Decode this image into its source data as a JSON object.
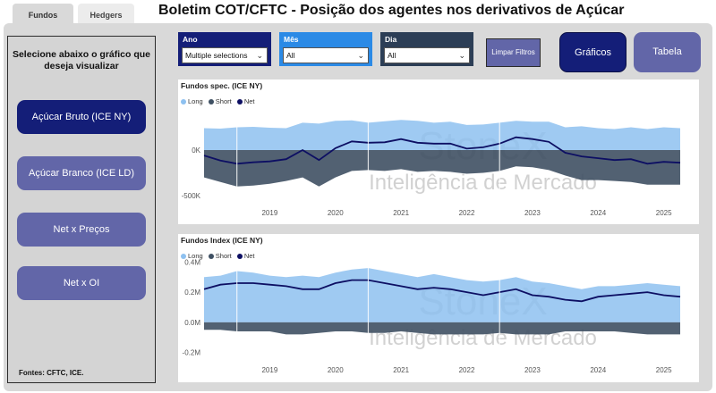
{
  "tabs": [
    {
      "label": "Fundos",
      "active": true
    },
    {
      "label": "Hedgers",
      "active": false
    }
  ],
  "title": "Boletim COT/CFTC - Posição dos agentes nos derivativos de Açúcar",
  "left_panel": {
    "heading": "Selecione abaixo o gráfico que deseja visualizar",
    "buttons": [
      "Açúcar Bruto (ICE NY)",
      "Açúcar Branco (ICE LD)",
      "Net x Preços",
      "Net x OI"
    ],
    "active_button": "Açúcar Bruto (ICE NY)",
    "source": "Fontes: CFTC, ICE."
  },
  "filters": [
    {
      "label": "Ano",
      "value": "Multiple selections",
      "color": "#141e78"
    },
    {
      "label": "Mês",
      "value": "All",
      "color": "#2b8ae6"
    },
    {
      "label": "Dia",
      "value": "All",
      "color": "#2c3e56"
    }
  ],
  "clear_button": "Limpar Filtros",
  "view_buttons": {
    "graficos": "Gráficos",
    "tabela": "Tabela",
    "active": "Gráficos"
  },
  "watermark": {
    "brand": "StoneX",
    "subtitle": "Inteligência de Mercado"
  },
  "colors": {
    "long": "#8ec1f0",
    "short": "#3f5063",
    "net": "#0d0f63"
  },
  "chart_data": [
    {
      "type": "area",
      "title": "Fundos spec.  (ICE NY)",
      "legend": [
        "Long",
        "Short",
        "Net"
      ],
      "x_ticks": [
        "2019",
        "2020",
        "2021",
        "2022",
        "2023",
        "2024",
        "2025"
      ],
      "y_ticks": [
        "0K",
        "-500K"
      ],
      "ylim": [
        -520000,
        480000
      ],
      "x": [
        2018.5,
        2018.75,
        2019.0,
        2019.25,
        2019.5,
        2019.75,
        2020.0,
        2020.25,
        2020.5,
        2020.75,
        2021.0,
        2021.25,
        2021.5,
        2021.75,
        2022.0,
        2022.25,
        2022.5,
        2022.75,
        2023.0,
        2023.25,
        2023.5,
        2023.75,
        2024.0,
        2024.25,
        2024.5,
        2024.75,
        2025.0,
        2025.25,
        2025.5,
        2025.75
      ],
      "series": [
        {
          "name": "Long",
          "values": [
            240000,
            235000,
            250000,
            255000,
            245000,
            240000,
            300000,
            290000,
            320000,
            325000,
            300000,
            315000,
            330000,
            320000,
            300000,
            310000,
            275000,
            280000,
            300000,
            320000,
            310000,
            310000,
            250000,
            260000,
            240000,
            230000,
            250000,
            230000,
            250000,
            240000
          ]
        },
        {
          "name": "Short",
          "values": [
            -300000,
            -350000,
            -400000,
            -390000,
            -370000,
            -340000,
            -300000,
            -400000,
            -300000,
            -230000,
            -220000,
            -230000,
            -210000,
            -240000,
            -230000,
            -240000,
            -260000,
            -250000,
            -230000,
            -180000,
            -190000,
            -220000,
            -280000,
            -330000,
            -330000,
            -340000,
            -350000,
            -380000,
            -380000,
            -380000
          ]
        },
        {
          "name": "Net",
          "values": [
            -60000,
            -115000,
            -150000,
            -135000,
            -125000,
            -100000,
            0,
            -110000,
            20000,
            95000,
            80000,
            85000,
            120000,
            80000,
            70000,
            70000,
            15000,
            30000,
            70000,
            140000,
            120000,
            90000,
            -30000,
            -70000,
            -90000,
            -110000,
            -100000,
            -150000,
            -130000,
            -140000
          ]
        }
      ]
    },
    {
      "type": "area",
      "title": "Fundos Index  (ICE NY)",
      "legend": [
        "Long",
        "Short",
        "Net"
      ],
      "x_ticks": [
        "2019",
        "2020",
        "2021",
        "2022",
        "2023",
        "2024",
        "2025"
      ],
      "y_ticks": [
        "0.4M",
        "0.2M",
        "0.0M",
        "-0.2M"
      ],
      "ylim": [
        -0.22,
        0.42
      ],
      "x": [
        2018.5,
        2018.75,
        2019.0,
        2019.25,
        2019.5,
        2019.75,
        2020.0,
        2020.25,
        2020.5,
        2020.75,
        2021.0,
        2021.25,
        2021.5,
        2021.75,
        2022.0,
        2022.25,
        2022.5,
        2022.75,
        2023.0,
        2023.25,
        2023.5,
        2023.75,
        2024.0,
        2024.25,
        2024.5,
        2024.75,
        2025.0,
        2025.25,
        2025.5,
        2025.75
      ],
      "series": [
        {
          "name": "Long",
          "values": [
            0.3,
            0.31,
            0.34,
            0.33,
            0.31,
            0.3,
            0.31,
            0.3,
            0.33,
            0.35,
            0.36,
            0.34,
            0.32,
            0.3,
            0.32,
            0.3,
            0.28,
            0.27,
            0.28,
            0.3,
            0.27,
            0.26,
            0.24,
            0.22,
            0.24,
            0.24,
            0.25,
            0.26,
            0.25,
            0.24
          ]
        },
        {
          "name": "Short",
          "values": [
            -0.05,
            -0.05,
            -0.06,
            -0.06,
            -0.06,
            -0.08,
            -0.08,
            -0.07,
            -0.06,
            -0.06,
            -0.07,
            -0.07,
            -0.06,
            -0.07,
            -0.08,
            -0.08,
            -0.08,
            -0.08,
            -0.07,
            -0.08,
            -0.08,
            -0.08,
            -0.06,
            -0.06,
            -0.06,
            -0.06,
            -0.07,
            -0.08,
            -0.08,
            -0.08
          ]
        },
        {
          "name": "Net",
          "values": [
            0.22,
            0.25,
            0.26,
            0.26,
            0.25,
            0.24,
            0.22,
            0.22,
            0.26,
            0.28,
            0.28,
            0.26,
            0.24,
            0.22,
            0.23,
            0.22,
            0.2,
            0.18,
            0.2,
            0.22,
            0.18,
            0.17,
            0.15,
            0.14,
            0.17,
            0.18,
            0.19,
            0.2,
            0.18,
            0.17
          ]
        }
      ]
    }
  ]
}
